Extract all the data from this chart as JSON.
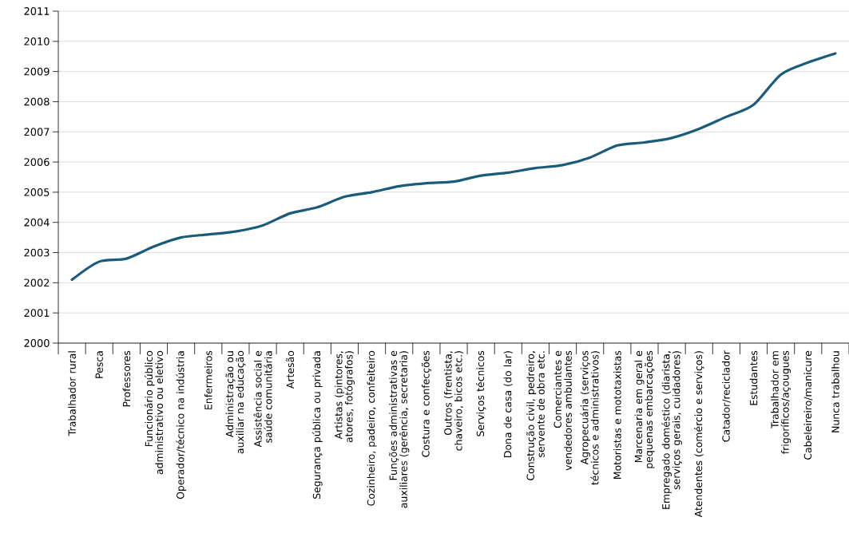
{
  "chart_data": {
    "type": "line",
    "categories": [
      "Trabalhador rural",
      "Pesca",
      "Professores",
      "Funcionário público administrativo ou eletivo",
      "Operador/técnico na indústria",
      "Enfermeiros",
      "Administração ou auxiliar na educação",
      "Assistência social e saúde comunitária",
      "Artesão",
      "Segurança pública ou privada",
      "Artistas (pintores, atores, fotógrafos)",
      "Cozinheiro, padeiro, confeiteiro",
      "Funções administrativas e auxiliares (gerência, secretaria)",
      "Costura e confecções",
      "Outros (frentista, chaveiro, bicos etc.)",
      "Serviços técnicos",
      "Dona de casa (do lar)",
      "Construção civil, pedreiro, servente de obra etc.",
      "Comerciantes e vendedores ambulantes",
      "Agropecuária (serviços técnicos e administrativos)",
      "Motoristas e mototaxistas",
      "Marcenaria em geral e pequenas embarcações",
      "Empregado doméstico (diarista, serviços gerais, cuidadores)",
      "Atendentes (comércio e serviços)",
      "Catador/reciclador",
      "Estudantes",
      "Trabalhador em frigoríficos/açougues",
      "Cabeleireiro/manicure",
      "Nunca trabalhou"
    ],
    "series": [
      {
        "color": "#1b5b7a",
        "values": [
          2002.1,
          2002.7,
          2002.8,
          2003.2,
          2003.5,
          2003.6,
          2003.7,
          2003.9,
          2004.3,
          2004.5,
          2004.85,
          2005.0,
          2005.2,
          2005.3,
          2005.35,
          2005.55,
          2005.65,
          2005.8,
          2005.9,
          2006.15,
          2006.55,
          2006.65,
          2006.8,
          2007.1,
          2007.5,
          2007.9,
          2008.9,
          2009.3,
          2009.6
        ]
      }
    ],
    "ylim": [
      2000,
      2011
    ],
    "yticks": [
      2000,
      2001,
      2002,
      2003,
      2004,
      2005,
      2006,
      2007,
      2008,
      2009,
      2010,
      2011
    ],
    "grid": "y",
    "marker": "none",
    "line_style": "solid"
  }
}
